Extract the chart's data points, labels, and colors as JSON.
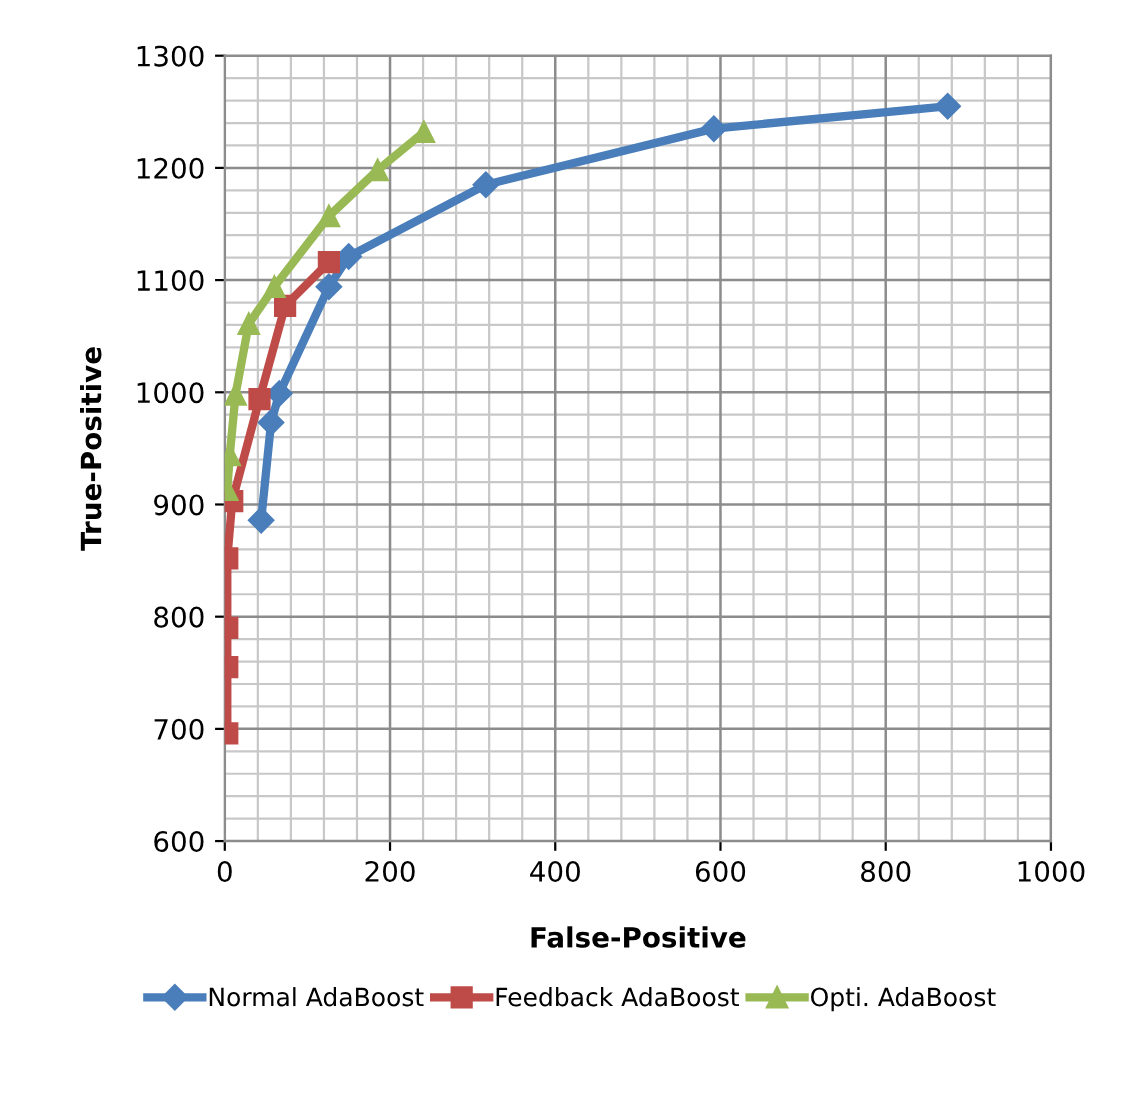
{
  "chart_data": {
    "type": "line",
    "xlabel": "False-Positive",
    "ylabel": "True-Positive",
    "xlim": [
      0,
      1000
    ],
    "xticks": [
      0,
      200,
      400,
      600,
      800,
      1000
    ],
    "ylim": [
      600,
      1300
    ],
    "yticks": [
      600,
      700,
      800,
      900,
      1000,
      1100,
      1200,
      1300
    ],
    "grid": true,
    "legend": "bottom",
    "line_style": "solid",
    "series": [
      {
        "name": "Normal AdaBoost",
        "color": "#4a7ebb",
        "marker": "diamond",
        "x": [
          44,
          56,
          66,
          126,
          150,
          316,
          592,
          875
        ],
        "values": [
          886,
          973,
          999,
          1094,
          1121,
          1185,
          1235,
          1255
        ]
      },
      {
        "name": "Feedback AdaBoost",
        "color": "#be4b48",
        "marker": "square",
        "x": [
          3,
          3,
          3,
          3,
          9,
          42,
          73,
          126
        ],
        "values": [
          696,
          755,
          790,
          852,
          903,
          994,
          1077,
          1116
        ]
      },
      {
        "name": "Opti. AdaBoost",
        "color": "#98b954",
        "marker": "triangle",
        "x": [
          3,
          6,
          13,
          29,
          60,
          126,
          185,
          241
        ],
        "values": [
          913,
          944,
          998,
          1061,
          1094,
          1157,
          1198,
          1232
        ]
      }
    ]
  }
}
